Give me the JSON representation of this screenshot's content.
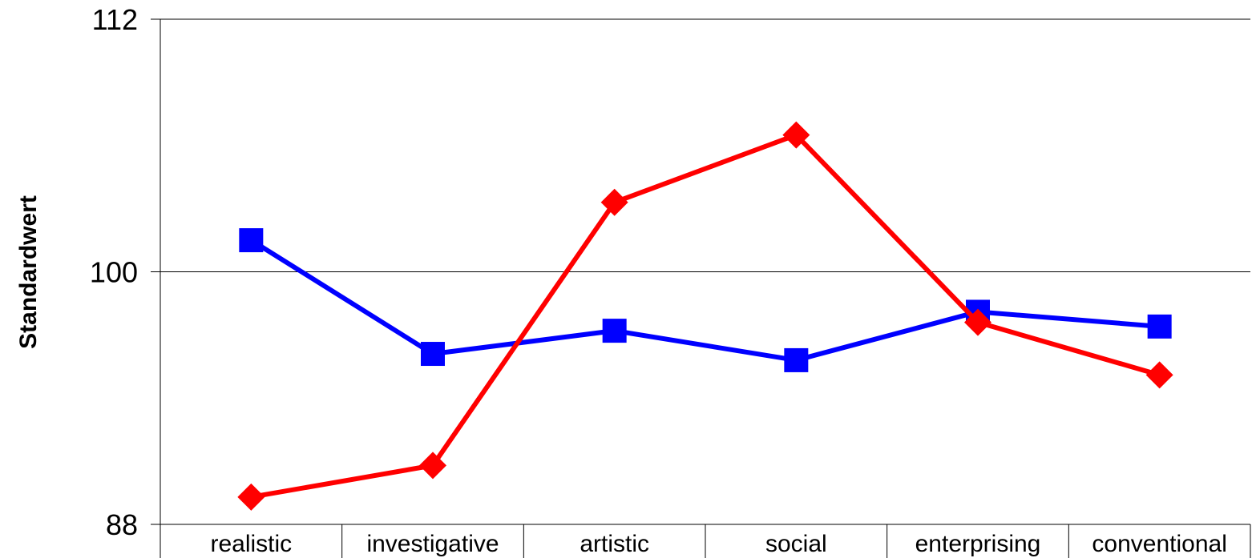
{
  "chart_data": {
    "type": "line",
    "ylabel": "Standardwert",
    "xlabel": "",
    "ylim": [
      88,
      112
    ],
    "yticks": [
      88,
      100,
      112
    ],
    "grid": true,
    "categories": [
      "realistic",
      "investigative",
      "artistic",
      "social",
      "enterprising",
      "conventional"
    ],
    "series": [
      {
        "color": "#0000ff",
        "marker": "square",
        "values": [
          101.5,
          96.1,
          97.2,
          95.8,
          98.1,
          97.4
        ]
      },
      {
        "color": "#ff0000",
        "marker": "diamond",
        "values": [
          89.3,
          90.8,
          103.3,
          106.5,
          97.6,
          95.1
        ]
      }
    ]
  }
}
